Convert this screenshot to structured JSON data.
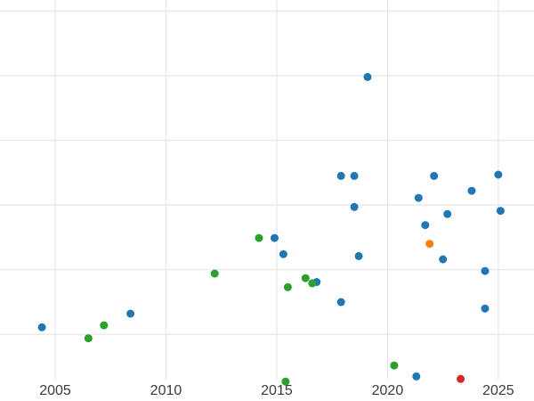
{
  "chart_data": {
    "type": "scatter",
    "title": "",
    "xlabel": "",
    "ylabel": "",
    "legend": "none",
    "grid": true,
    "x_tick_labels": [
      "2005",
      "2010",
      "2015",
      "2020",
      "2025"
    ],
    "x_tick_values": [
      2005,
      2010,
      2015,
      2020,
      2025
    ],
    "xlim": [
      2002.51,
      2026.61
    ],
    "ylim": [
      -1.03,
      5.17
    ],
    "y_gridline_values": [
      0,
      1,
      2,
      3,
      4,
      5
    ],
    "marker_radius": 4.5,
    "colors": {
      "background": "#ffffff",
      "gridline": "#e8e8e8",
      "tick_text": "#3b3b3b",
      "blue": "#1f77b4",
      "green": "#2ca02c",
      "orange": "#ff7f0e",
      "red": "#d62728"
    },
    "series": [
      {
        "name": "series-blue",
        "color": "#1f77b4",
        "points": [
          [
            2004.4,
            0.11
          ],
          [
            2008.4,
            0.32
          ],
          [
            2014.9,
            1.49
          ],
          [
            2015.3,
            1.24
          ],
          [
            2016.8,
            0.81
          ],
          [
            2017.9,
            0.5
          ],
          [
            2017.9,
            2.45
          ],
          [
            2018.5,
            2.45
          ],
          [
            2018.5,
            1.97
          ],
          [
            2018.7,
            1.21
          ],
          [
            2019.1,
            3.98
          ],
          [
            2021.3,
            -0.65
          ],
          [
            2021.4,
            2.11
          ],
          [
            2021.7,
            1.69
          ],
          [
            2022.1,
            2.45
          ],
          [
            2022.5,
            1.16
          ],
          [
            2022.7,
            1.86
          ],
          [
            2023.8,
            2.22
          ],
          [
            2024.4,
            0.98
          ],
          [
            2024.4,
            0.4
          ],
          [
            2025.0,
            2.47
          ],
          [
            2025.1,
            1.91
          ]
        ]
      },
      {
        "name": "series-green",
        "color": "#2ca02c",
        "points": [
          [
            2006.5,
            -0.06
          ],
          [
            2007.2,
            0.14
          ],
          [
            2012.2,
            0.94
          ],
          [
            2014.2,
            1.49
          ],
          [
            2015.4,
            -0.73
          ],
          [
            2015.5,
            0.73
          ],
          [
            2016.3,
            0.87
          ],
          [
            2016.6,
            0.79
          ],
          [
            2020.3,
            -0.48
          ]
        ]
      },
      {
        "name": "series-orange",
        "color": "#ff7f0e",
        "points": [
          [
            2021.9,
            1.4
          ]
        ]
      },
      {
        "name": "series-red",
        "color": "#d62728",
        "points": [
          [
            2023.3,
            -0.69
          ]
        ]
      }
    ]
  }
}
